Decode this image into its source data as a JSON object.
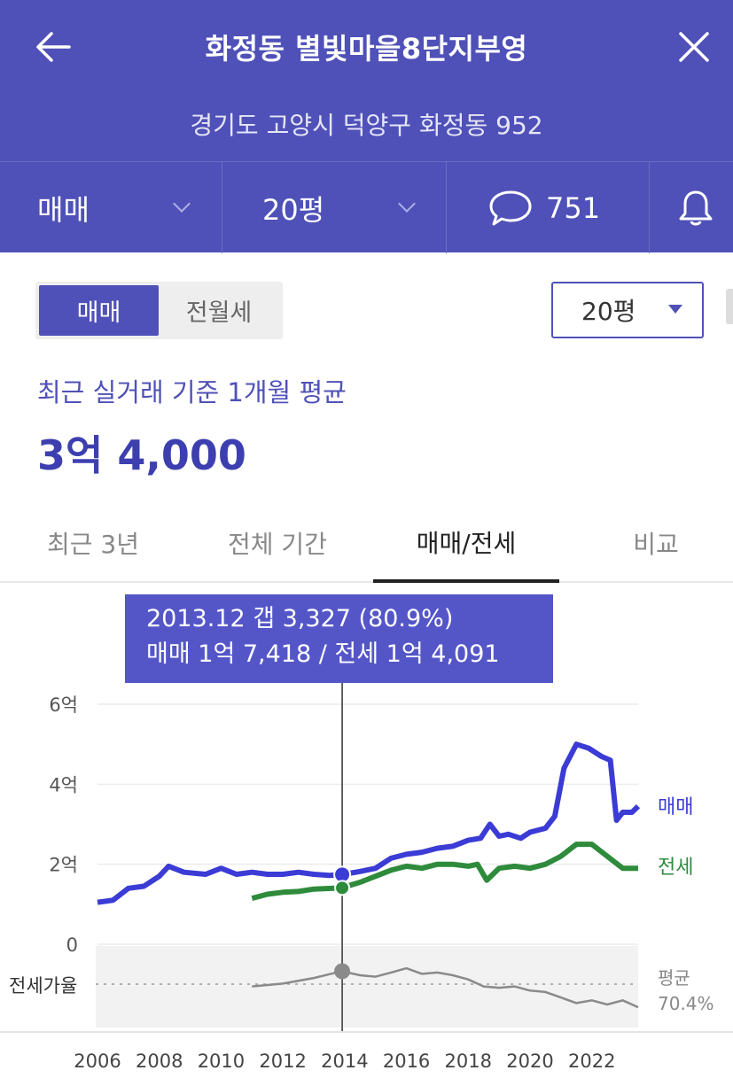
{
  "header": {
    "title": "화정동 별빛마을8단지부영",
    "address": "경기도 고양시 덕양구 화정동 952",
    "deal_type": "매매",
    "size": "20평",
    "comment_count": "751"
  },
  "controls": {
    "seg_sale": "매매",
    "seg_rent": "전월세",
    "size_select": "20평"
  },
  "summary": {
    "caption": "최근 실거래 기준 1개월 평균",
    "price": "3억 4,000"
  },
  "tabs": [
    "최근 3년",
    "전체 기간",
    "매매/전세",
    "비교"
  ],
  "tooltip": {
    "line1": "2013.12  갭 3,327 (80.9%)",
    "line2": "매매 1억 7,418 / 전세 1억 4,091"
  },
  "colors": {
    "brand": "#4f51b8",
    "sale": "#3b3bd6",
    "jeonse": "#2e8b3c",
    "ratio": "#8a8a8a"
  },
  "chart_data": {
    "type": "line",
    "x_ticks": [
      "2006",
      "2008",
      "2010",
      "2012",
      "2014",
      "2016",
      "2018",
      "2020",
      "2022"
    ],
    "xlim": [
      2006,
      2023.5
    ],
    "y_ticks": [
      "6억",
      "4억",
      "2억",
      "0"
    ],
    "ylim": [
      0,
      6
    ],
    "y_unit": "억",
    "series": [
      {
        "name": "매매",
        "color": "#3b3bd6",
        "points": [
          [
            2006,
            1.05
          ],
          [
            2006.5,
            1.1
          ],
          [
            2007,
            1.4
          ],
          [
            2007.5,
            1.45
          ],
          [
            2008,
            1.7
          ],
          [
            2008.3,
            1.95
          ],
          [
            2008.8,
            1.8
          ],
          [
            2009.5,
            1.75
          ],
          [
            2010,
            1.9
          ],
          [
            2010.5,
            1.75
          ],
          [
            2011,
            1.8
          ],
          [
            2011.5,
            1.75
          ],
          [
            2012,
            1.75
          ],
          [
            2012.5,
            1.8
          ],
          [
            2013,
            1.75
          ],
          [
            2013.5,
            1.72
          ],
          [
            2013.9,
            1.74
          ],
          [
            2014.5,
            1.82
          ],
          [
            2015,
            1.9
          ],
          [
            2015.5,
            2.15
          ],
          [
            2016,
            2.25
          ],
          [
            2016.5,
            2.3
          ],
          [
            2017,
            2.4
          ],
          [
            2017.5,
            2.45
          ],
          [
            2018,
            2.6
          ],
          [
            2018.4,
            2.65
          ],
          [
            2018.7,
            3.0
          ],
          [
            2019,
            2.7
          ],
          [
            2019.3,
            2.75
          ],
          [
            2019.7,
            2.65
          ],
          [
            2020,
            2.8
          ],
          [
            2020.5,
            2.9
          ],
          [
            2020.8,
            3.2
          ],
          [
            2021.1,
            4.4
          ],
          [
            2021.5,
            5.0
          ],
          [
            2021.9,
            4.9
          ],
          [
            2022.3,
            4.7
          ],
          [
            2022.6,
            4.6
          ],
          [
            2022.8,
            3.1
          ],
          [
            2023,
            3.3
          ],
          [
            2023.3,
            3.3
          ],
          [
            2023.5,
            3.45
          ]
        ]
      },
      {
        "name": "전세",
        "color": "#2e8b3c",
        "points": [
          [
            2011,
            1.15
          ],
          [
            2011.5,
            1.25
          ],
          [
            2012,
            1.3
          ],
          [
            2012.5,
            1.32
          ],
          [
            2013,
            1.38
          ],
          [
            2013.9,
            1.41
          ],
          [
            2014.5,
            1.55
          ],
          [
            2015,
            1.7
          ],
          [
            2015.5,
            1.85
          ],
          [
            2016,
            1.95
          ],
          [
            2016.5,
            1.9
          ],
          [
            2017,
            2.0
          ],
          [
            2017.5,
            2.0
          ],
          [
            2018,
            1.95
          ],
          [
            2018.3,
            2.0
          ],
          [
            2018.6,
            1.6
          ],
          [
            2019,
            1.9
          ],
          [
            2019.5,
            1.95
          ],
          [
            2020,
            1.9
          ],
          [
            2020.5,
            2.0
          ],
          [
            2021,
            2.2
          ],
          [
            2021.5,
            2.5
          ],
          [
            2022,
            2.5
          ],
          [
            2022.5,
            2.2
          ],
          [
            2023,
            1.9
          ],
          [
            2023.5,
            1.9
          ]
        ]
      }
    ],
    "ratio_series": {
      "label": "전세가율",
      "average_label": "평균",
      "average_value": "70.4%",
      "points": [
        [
          2011,
          70
        ],
        [
          2012,
          72
        ],
        [
          2013,
          76
        ],
        [
          2013.9,
          80.9
        ],
        [
          2014.5,
          78
        ],
        [
          2015,
          77
        ],
        [
          2015.5,
          80
        ],
        [
          2016,
          83
        ],
        [
          2016.5,
          79
        ],
        [
          2017,
          80
        ],
        [
          2017.5,
          78
        ],
        [
          2018,
          75
        ],
        [
          2018.5,
          70
        ],
        [
          2019,
          69
        ],
        [
          2019.5,
          70
        ],
        [
          2020,
          67
        ],
        [
          2020.5,
          66
        ],
        [
          2021,
          62
        ],
        [
          2021.5,
          58
        ],
        [
          2022,
          60
        ],
        [
          2022.5,
          57
        ],
        [
          2023,
          60
        ],
        [
          2023.5,
          55
        ]
      ]
    },
    "highlight": {
      "x": 2013.92,
      "sale": 1.7418,
      "jeonse": 1.4091,
      "ratio": 80.9
    }
  }
}
